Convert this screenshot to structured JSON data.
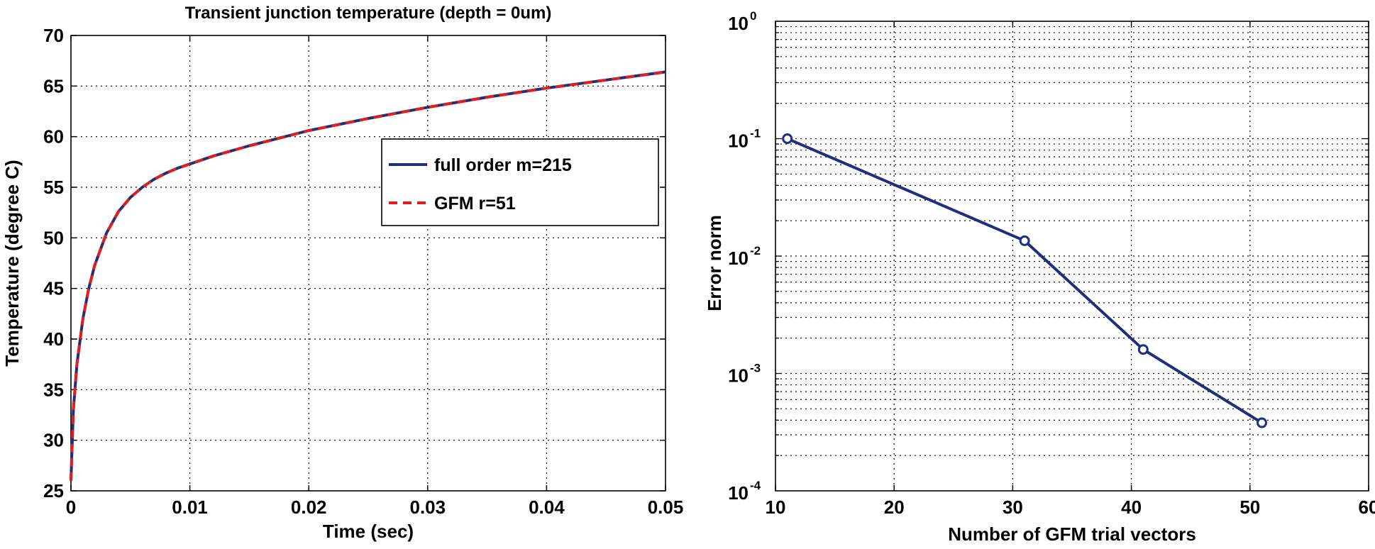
{
  "chart_data": [
    {
      "type": "line",
      "title": "Transient junction temperature (depth = 0um)",
      "xlabel": "Time (sec)",
      "ylabel": "Temperature (degree C)",
      "xlim": [
        0,
        0.05
      ],
      "ylim": [
        25,
        70
      ],
      "grid": true,
      "x_ticks": [
        "0",
        "0.01",
        "0.02",
        "0.03",
        "0.04",
        "0.05"
      ],
      "y_ticks": [
        "25",
        "30",
        "35",
        "40",
        "45",
        "50",
        "55",
        "60",
        "65",
        "70"
      ],
      "legend": {
        "location": "center-right",
        "entries": [
          "full order m=215",
          "GFM r=51"
        ]
      },
      "series": [
        {
          "name": "full order m=215",
          "color": "#1f2f7a",
          "style": "solid",
          "x": [
            0,
            0.0002,
            0.0005,
            0.001,
            0.0015,
            0.002,
            0.003,
            0.004,
            0.005,
            0.006,
            0.007,
            0.008,
            0.009,
            0.01,
            0.012,
            0.015,
            0.02,
            0.025,
            0.03,
            0.035,
            0.04,
            0.045,
            0.05
          ],
          "y": [
            26.0,
            33.0,
            37.5,
            42.0,
            45.0,
            47.3,
            50.5,
            52.6,
            54.0,
            55.0,
            55.8,
            56.4,
            56.9,
            57.3,
            58.1,
            59.1,
            60.6,
            61.8,
            62.9,
            63.9,
            64.8,
            65.6,
            66.4
          ]
        },
        {
          "name": "GFM r=51",
          "color": "#e02020",
          "style": "dashed",
          "x": [
            0,
            0.0002,
            0.0005,
            0.001,
            0.0015,
            0.002,
            0.003,
            0.004,
            0.005,
            0.006,
            0.007,
            0.008,
            0.009,
            0.01,
            0.012,
            0.015,
            0.02,
            0.025,
            0.03,
            0.035,
            0.04,
            0.045,
            0.05
          ],
          "y": [
            26.0,
            33.0,
            37.5,
            42.0,
            45.0,
            47.3,
            50.5,
            52.6,
            54.0,
            55.0,
            55.8,
            56.4,
            56.9,
            57.3,
            58.1,
            59.1,
            60.6,
            61.8,
            62.9,
            63.9,
            64.8,
            65.6,
            66.4
          ]
        }
      ]
    },
    {
      "type": "line",
      "title": "",
      "xlabel": "Number of GFM trial vectors",
      "ylabel": "Error norm",
      "xlim": [
        10,
        60
      ],
      "ylim": [
        0.0001,
        1
      ],
      "yscale": "log",
      "grid": true,
      "x_ticks": [
        "10",
        "20",
        "30",
        "40",
        "50",
        "60"
      ],
      "y_ticks": [
        {
          "base": "10",
          "exp": "0",
          "value": 1
        },
        {
          "base": "10",
          "exp": "-1",
          "value": 0.1
        },
        {
          "base": "10",
          "exp": "-2",
          "value": 0.01
        },
        {
          "base": "10",
          "exp": "-3",
          "value": 0.001
        },
        {
          "base": "10",
          "exp": "-4",
          "value": 0.0001
        }
      ],
      "series": [
        {
          "name": "error",
          "color": "#1f2f7a",
          "marker": "circle",
          "x": [
            11,
            31,
            41,
            51
          ],
          "y": [
            0.1,
            0.0135,
            0.0016,
            0.00038
          ]
        }
      ]
    }
  ]
}
